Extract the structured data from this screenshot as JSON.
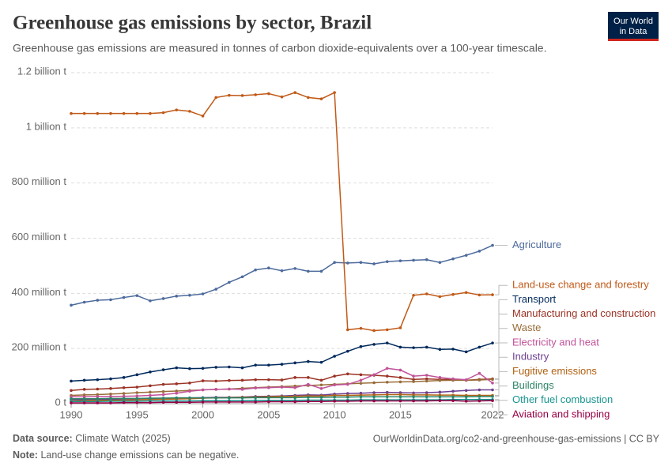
{
  "chart_data": {
    "type": "line",
    "title": "Greenhouse gas emissions by sector, Brazil",
    "subtitle": "Greenhouse gas emissions are measured in tonnes of carbon dioxide-equivalents over a 100-year timescale.",
    "logo": {
      "line1": "Our World",
      "line2": "in Data"
    },
    "source_label": "Data source:",
    "source": "Climate Watch (2025)",
    "url": "OurWorldinData.org/co2-and-greenhouse-gas-emissions | CC BY",
    "note_label": "Note:",
    "note": "Land-use change emissions can be negative.",
    "grid": true,
    "xlim": [
      1990,
      2022
    ],
    "xticks": [
      1990,
      1995,
      2000,
      2005,
      2010,
      2015,
      2022
    ],
    "ylim": [
      0,
      1200000000
    ],
    "yticks": [
      {
        "value": 0,
        "label": "0 t"
      },
      {
        "value": 200000000,
        "label": "200 million t"
      },
      {
        "value": 400000000,
        "label": "400 million t"
      },
      {
        "value": 600000000,
        "label": "600 million t"
      },
      {
        "value": 800000000,
        "label": "800 million t"
      },
      {
        "value": 1000000000,
        "label": "1 billion t"
      },
      {
        "value": 1200000000,
        "label": "1.2 billion t"
      }
    ],
    "x": [
      1990,
      1991,
      1992,
      1993,
      1994,
      1995,
      1996,
      1997,
      1998,
      1999,
      2000,
      2001,
      2002,
      2003,
      2004,
      2005,
      2006,
      2007,
      2008,
      2009,
      2010,
      2011,
      2012,
      2013,
      2014,
      2015,
      2016,
      2017,
      2018,
      2019,
      2020,
      2021,
      2022
    ],
    "series": [
      {
        "name": "Agriculture",
        "color": "#4c6a9c",
        "values": [
          357000000,
          368000000,
          375000000,
          377000000,
          385000000,
          392000000,
          373000000,
          381000000,
          390000000,
          393000000,
          398000000,
          415000000,
          440000000,
          460000000,
          485000000,
          492000000,
          482000000,
          490000000,
          480000000,
          480000000,
          512000000,
          510000000,
          512000000,
          507000000,
          515000000,
          518000000,
          520000000,
          522000000,
          512000000,
          525000000,
          538000000,
          553000000,
          574000000
        ]
      },
      {
        "name": "Land-use change and forestry",
        "color": "#c05917",
        "values": [
          1052000000,
          1052000000,
          1052000000,
          1052000000,
          1052000000,
          1052000000,
          1052000000,
          1055000000,
          1065000000,
          1060000000,
          1043000000,
          1110000000,
          1118000000,
          1117000000,
          1120000000,
          1124000000,
          1112000000,
          1128000000,
          1110000000,
          1105000000,
          1128000000,
          268000000,
          273000000,
          265000000,
          268000000,
          275000000,
          393000000,
          398000000,
          388000000,
          396000000,
          403000000,
          394000000,
          395000000
        ]
      },
      {
        "name": "Transport",
        "color": "#00295b",
        "values": [
          82000000,
          85000000,
          87000000,
          90000000,
          95000000,
          105000000,
          115000000,
          123000000,
          130000000,
          127000000,
          128000000,
          132000000,
          133000000,
          130000000,
          140000000,
          140000000,
          143000000,
          148000000,
          153000000,
          150000000,
          172000000,
          190000000,
          207000000,
          215000000,
          220000000,
          205000000,
          203000000,
          205000000,
          197000000,
          198000000,
          188000000,
          205000000,
          220000000
        ]
      },
      {
        "name": "Manufacturing and construction",
        "color": "#9a3224",
        "values": [
          48000000,
          52000000,
          53000000,
          55000000,
          58000000,
          60000000,
          65000000,
          70000000,
          72000000,
          75000000,
          83000000,
          82000000,
          84000000,
          85000000,
          87000000,
          87000000,
          86000000,
          95000000,
          95000000,
          85000000,
          100000000,
          108000000,
          105000000,
          103000000,
          100000000,
          95000000,
          88000000,
          90000000,
          88000000,
          88000000,
          85000000,
          88000000,
          90000000
        ]
      },
      {
        "name": "Waste",
        "color": "#996d39",
        "values": [
          30000000,
          32000000,
          33000000,
          35000000,
          37000000,
          40000000,
          42000000,
          44000000,
          46000000,
          48000000,
          50000000,
          52000000,
          53000000,
          56000000,
          58000000,
          60000000,
          62000000,
          64000000,
          66000000,
          68000000,
          70000000,
          72000000,
          74000000,
          76000000,
          78000000,
          79000000,
          80000000,
          82000000,
          84000000,
          85000000,
          85000000,
          86000000,
          88000000
        ]
      },
      {
        "name": "Electricity and heat",
        "color": "#c15299",
        "values": [
          25000000,
          25000000,
          26000000,
          26000000,
          27000000,
          28000000,
          30000000,
          33000000,
          38000000,
          45000000,
          50000000,
          52000000,
          53000000,
          52000000,
          57000000,
          58000000,
          60000000,
          58000000,
          70000000,
          55000000,
          68000000,
          70000000,
          85000000,
          105000000,
          128000000,
          122000000,
          100000000,
          103000000,
          95000000,
          90000000,
          87000000,
          110000000,
          75000000
        ]
      },
      {
        "name": "Industry",
        "color": "#6d3e91",
        "values": [
          15000000,
          15000000,
          16000000,
          16000000,
          17000000,
          18000000,
          19000000,
          20000000,
          21000000,
          21000000,
          22000000,
          23000000,
          23000000,
          24000000,
          26000000,
          27000000,
          28000000,
          30000000,
          32000000,
          31000000,
          35000000,
          37000000,
          38000000,
          40000000,
          41000000,
          40000000,
          39000000,
          40000000,
          42000000,
          45000000,
          48000000,
          50000000,
          50000000
        ]
      },
      {
        "name": "Fugitive emissions",
        "color": "#b16214",
        "values": [
          10000000,
          11000000,
          12000000,
          12000000,
          13000000,
          14000000,
          15000000,
          16000000,
          17000000,
          18000000,
          20000000,
          21000000,
          22000000,
          23000000,
          24000000,
          25000000,
          26000000,
          27000000,
          28000000,
          28000000,
          30000000,
          30000000,
          31000000,
          32000000,
          33000000,
          33000000,
          32000000,
          32000000,
          31000000,
          31000000,
          30000000,
          30000000,
          30000000
        ]
      },
      {
        "name": "Buildings",
        "color": "#2c8465",
        "values": [
          18000000,
          18000000,
          18000000,
          19000000,
          19000000,
          19000000,
          20000000,
          20000000,
          21000000,
          21000000,
          21000000,
          21000000,
          21000000,
          21000000,
          22000000,
          22000000,
          22000000,
          22000000,
          23000000,
          23000000,
          24000000,
          24000000,
          25000000,
          25000000,
          25000000,
          25000000,
          25000000,
          25000000,
          25000000,
          25000000,
          25000000,
          26000000,
          26000000
        ]
      },
      {
        "name": "Other fuel combustion",
        "color": "#18958f",
        "values": [
          8000000,
          8000000,
          8000000,
          9000000,
          9000000,
          9000000,
          10000000,
          10000000,
          10000000,
          10000000,
          11000000,
          11000000,
          11000000,
          11000000,
          12000000,
          12000000,
          12000000,
          12000000,
          13000000,
          13000000,
          13000000,
          13000000,
          14000000,
          14000000,
          14000000,
          14000000,
          14000000,
          14000000,
          14000000,
          15000000,
          15000000,
          15000000,
          15000000
        ]
      },
      {
        "name": "Aviation and shipping",
        "color": "#970046",
        "values": [
          3000000,
          3000000,
          3000000,
          3000000,
          4000000,
          4000000,
          4000000,
          5000000,
          5000000,
          5000000,
          6000000,
          6000000,
          6000000,
          6000000,
          6000000,
          7000000,
          7000000,
          7000000,
          8000000,
          8000000,
          9000000,
          9000000,
          10000000,
          10000000,
          10000000,
          10000000,
          10000000,
          10000000,
          11000000,
          11000000,
          9000000,
          10000000,
          11000000
        ]
      }
    ]
  }
}
